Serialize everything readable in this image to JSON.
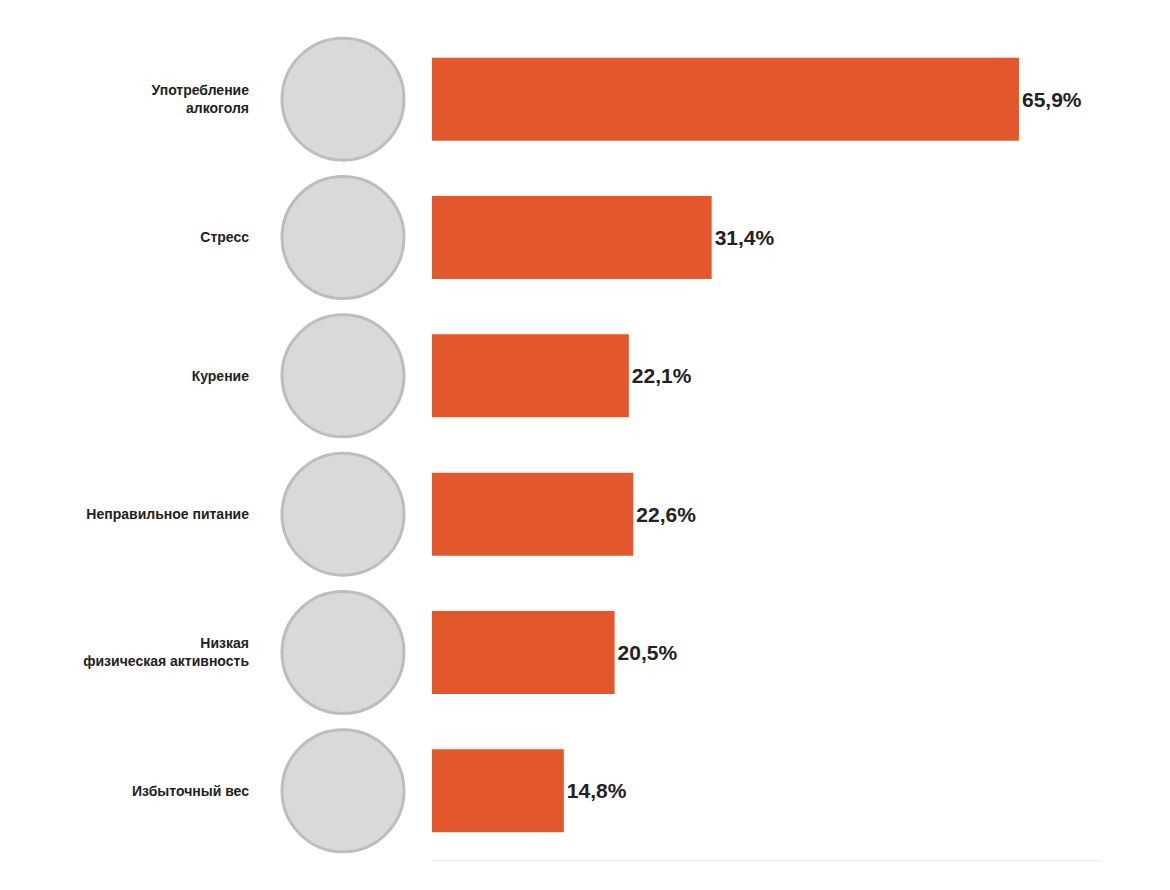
{
  "chart_data": {
    "type": "bar",
    "orientation": "horizontal",
    "categories": [
      "Употребление алкоголя",
      "Стресс",
      "Курение",
      "Неправильное питание",
      "Низкая физическая активность",
      "Избыточный вес"
    ],
    "values": [
      65.9,
      31.4,
      22.1,
      22.6,
      20.5,
      14.8
    ],
    "value_labels": [
      "65,9%",
      "31,4%",
      "22,1%",
      "22,6%",
      "20,5%",
      "14,8%"
    ],
    "color": "#e2572b",
    "xlim": [
      0,
      75
    ],
    "data_labels": true,
    "tick_labels": "y",
    "grid": false
  }
}
